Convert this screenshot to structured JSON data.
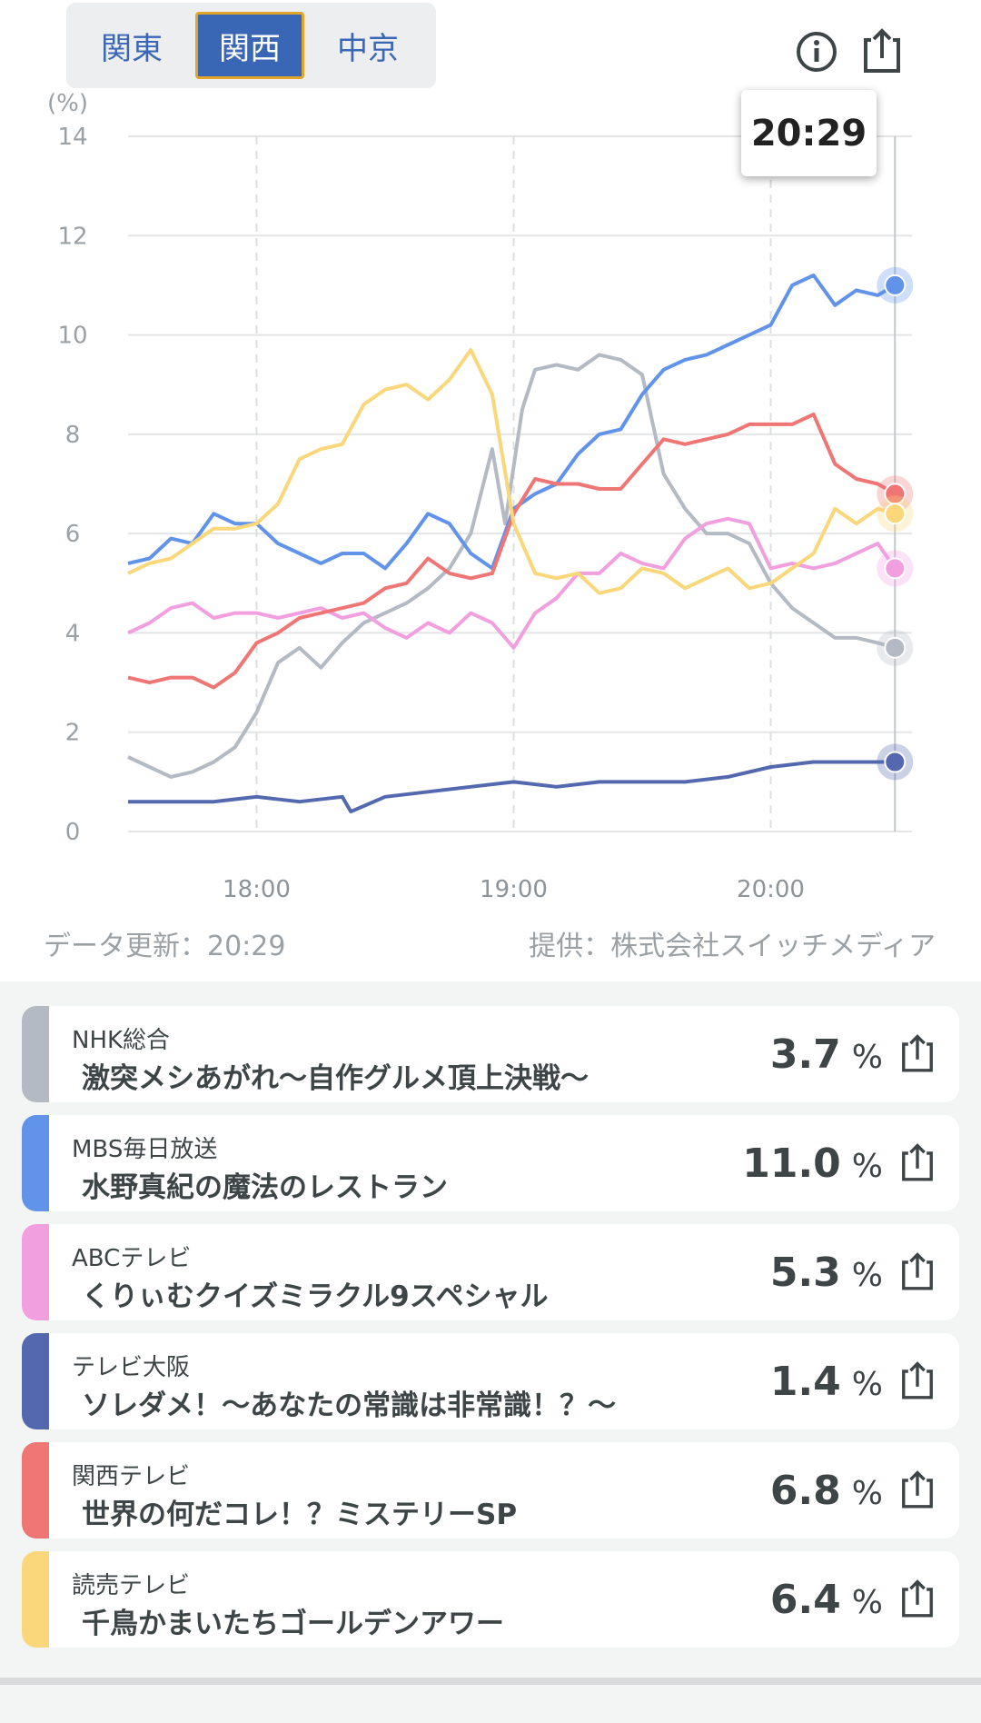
{
  "region_tabs": [
    {
      "label": "関東",
      "active": false
    },
    {
      "label": "関西",
      "active": true
    },
    {
      "label": "中京",
      "active": false
    }
  ],
  "header": {
    "info_icon": "info-icon",
    "share_icon": "share-icon"
  },
  "tooltip": {
    "time": "20:29"
  },
  "footer": {
    "updated": "データ更新：20:29",
    "provider": "提供：株式会社スイッチメディア"
  },
  "chart_data": {
    "type": "line",
    "ylabel": "(%)",
    "ylim": [
      0,
      14
    ],
    "yticks": [
      "0",
      "2",
      "4",
      "6",
      "8",
      "10",
      "12",
      "14"
    ],
    "xlim": [
      "17:30",
      "20:29"
    ],
    "xticks": [
      "18:00",
      "19:00",
      "20:00"
    ],
    "cursor": "20:29",
    "grid": true,
    "series": [
      {
        "name": "NHK総合",
        "color": "#b4bac3",
        "points": [
          [
            "17:30",
            1.5
          ],
          [
            "17:35",
            1.3
          ],
          [
            "17:40",
            1.1
          ],
          [
            "17:45",
            1.2
          ],
          [
            "17:50",
            1.4
          ],
          [
            "17:55",
            1.7
          ],
          [
            "18:00",
            2.4
          ],
          [
            "18:05",
            3.4
          ],
          [
            "18:10",
            3.7
          ],
          [
            "18:15",
            3.3
          ],
          [
            "18:20",
            3.8
          ],
          [
            "18:25",
            4.2
          ],
          [
            "18:30",
            4.4
          ],
          [
            "18:35",
            4.6
          ],
          [
            "18:40",
            4.9
          ],
          [
            "18:45",
            5.3
          ],
          [
            "18:50",
            6.0
          ],
          [
            "18:55",
            7.7
          ],
          [
            "18:58",
            6.2
          ],
          [
            "19:02",
            8.5
          ],
          [
            "19:05",
            9.3
          ],
          [
            "19:10",
            9.4
          ],
          [
            "19:15",
            9.3
          ],
          [
            "19:20",
            9.6
          ],
          [
            "19:25",
            9.5
          ],
          [
            "19:30",
            9.2
          ],
          [
            "19:35",
            7.2
          ],
          [
            "19:40",
            6.5
          ],
          [
            "19:45",
            6.0
          ],
          [
            "19:50",
            6.0
          ],
          [
            "19:55",
            5.8
          ],
          [
            "20:00",
            5.0
          ],
          [
            "20:05",
            4.5
          ],
          [
            "20:10",
            4.2
          ],
          [
            "20:15",
            3.9
          ],
          [
            "20:20",
            3.9
          ],
          [
            "20:25",
            3.8
          ],
          [
            "20:29",
            3.7
          ]
        ]
      },
      {
        "name": "MBS毎日放送",
        "color": "#6193ea",
        "points": [
          [
            "17:30",
            5.4
          ],
          [
            "17:35",
            5.5
          ],
          [
            "17:40",
            5.9
          ],
          [
            "17:45",
            5.8
          ],
          [
            "17:50",
            6.4
          ],
          [
            "17:55",
            6.2
          ],
          [
            "18:00",
            6.2
          ],
          [
            "18:05",
            5.8
          ],
          [
            "18:10",
            5.6
          ],
          [
            "18:15",
            5.4
          ],
          [
            "18:20",
            5.6
          ],
          [
            "18:25",
            5.6
          ],
          [
            "18:30",
            5.3
          ],
          [
            "18:35",
            5.8
          ],
          [
            "18:40",
            6.4
          ],
          [
            "18:45",
            6.2
          ],
          [
            "18:50",
            5.6
          ],
          [
            "18:55",
            5.3
          ],
          [
            "19:00",
            6.5
          ],
          [
            "19:05",
            6.8
          ],
          [
            "19:10",
            7.0
          ],
          [
            "19:15",
            7.6
          ],
          [
            "19:20",
            8.0
          ],
          [
            "19:25",
            8.1
          ],
          [
            "19:30",
            8.8
          ],
          [
            "19:35",
            9.3
          ],
          [
            "19:40",
            9.5
          ],
          [
            "19:45",
            9.6
          ],
          [
            "19:50",
            9.8
          ],
          [
            "19:55",
            10.0
          ],
          [
            "20:00",
            10.2
          ],
          [
            "20:05",
            11.0
          ],
          [
            "20:10",
            11.2
          ],
          [
            "20:15",
            10.6
          ],
          [
            "20:20",
            10.9
          ],
          [
            "20:25",
            10.8
          ],
          [
            "20:29",
            11.0
          ]
        ]
      },
      {
        "name": "ABCテレビ",
        "color": "#f29fe0",
        "points": [
          [
            "17:30",
            4.0
          ],
          [
            "17:35",
            4.2
          ],
          [
            "17:40",
            4.5
          ],
          [
            "17:45",
            4.6
          ],
          [
            "17:50",
            4.3
          ],
          [
            "17:55",
            4.4
          ],
          [
            "18:00",
            4.4
          ],
          [
            "18:05",
            4.3
          ],
          [
            "18:10",
            4.4
          ],
          [
            "18:15",
            4.5
          ],
          [
            "18:20",
            4.3
          ],
          [
            "18:25",
            4.4
          ],
          [
            "18:30",
            4.1
          ],
          [
            "18:35",
            3.9
          ],
          [
            "18:40",
            4.2
          ],
          [
            "18:45",
            4.0
          ],
          [
            "18:50",
            4.4
          ],
          [
            "18:55",
            4.2
          ],
          [
            "19:00",
            3.7
          ],
          [
            "19:05",
            4.4
          ],
          [
            "19:10",
            4.7
          ],
          [
            "19:15",
            5.2
          ],
          [
            "19:20",
            5.2
          ],
          [
            "19:25",
            5.6
          ],
          [
            "19:30",
            5.4
          ],
          [
            "19:35",
            5.3
          ],
          [
            "19:40",
            5.9
          ],
          [
            "19:45",
            6.2
          ],
          [
            "19:50",
            6.3
          ],
          [
            "19:55",
            6.2
          ],
          [
            "20:00",
            5.3
          ],
          [
            "20:05",
            5.4
          ],
          [
            "20:10",
            5.3
          ],
          [
            "20:15",
            5.4
          ],
          [
            "20:20",
            5.6
          ],
          [
            "20:25",
            5.8
          ],
          [
            "20:29",
            5.3
          ]
        ]
      },
      {
        "name": "テレビ大阪",
        "color": "#5468b0",
        "points": [
          [
            "17:30",
            0.6
          ],
          [
            "17:40",
            0.6
          ],
          [
            "17:50",
            0.6
          ],
          [
            "18:00",
            0.7
          ],
          [
            "18:10",
            0.6
          ],
          [
            "18:20",
            0.7
          ],
          [
            "18:22",
            0.4
          ],
          [
            "18:30",
            0.7
          ],
          [
            "18:40",
            0.8
          ],
          [
            "18:50",
            0.9
          ],
          [
            "19:00",
            1.0
          ],
          [
            "19:10",
            0.9
          ],
          [
            "19:20",
            1.0
          ],
          [
            "19:30",
            1.0
          ],
          [
            "19:40",
            1.0
          ],
          [
            "19:50",
            1.1
          ],
          [
            "20:00",
            1.3
          ],
          [
            "20:10",
            1.4
          ],
          [
            "20:20",
            1.4
          ],
          [
            "20:29",
            1.4
          ]
        ]
      },
      {
        "name": "関西テレビ",
        "color": "#f07575",
        "points": [
          [
            "17:30",
            3.1
          ],
          [
            "17:35",
            3.0
          ],
          [
            "17:40",
            3.1
          ],
          [
            "17:45",
            3.1
          ],
          [
            "17:50",
            2.9
          ],
          [
            "17:55",
            3.2
          ],
          [
            "18:00",
            3.8
          ],
          [
            "18:05",
            4.0
          ],
          [
            "18:10",
            4.3
          ],
          [
            "18:15",
            4.4
          ],
          [
            "18:20",
            4.5
          ],
          [
            "18:25",
            4.6
          ],
          [
            "18:30",
            4.9
          ],
          [
            "18:35",
            5.0
          ],
          [
            "18:40",
            5.5
          ],
          [
            "18:45",
            5.2
          ],
          [
            "18:50",
            5.1
          ],
          [
            "18:55",
            5.2
          ],
          [
            "19:00",
            6.4
          ],
          [
            "19:05",
            7.1
          ],
          [
            "19:10",
            7.0
          ],
          [
            "19:15",
            7.0
          ],
          [
            "19:20",
            6.9
          ],
          [
            "19:25",
            6.9
          ],
          [
            "19:30",
            7.4
          ],
          [
            "19:35",
            7.9
          ],
          [
            "19:40",
            7.8
          ],
          [
            "19:45",
            7.9
          ],
          [
            "19:50",
            8.0
          ],
          [
            "19:55",
            8.2
          ],
          [
            "20:00",
            8.2
          ],
          [
            "20:05",
            8.2
          ],
          [
            "20:10",
            8.4
          ],
          [
            "20:15",
            7.4
          ],
          [
            "20:20",
            7.1
          ],
          [
            "20:25",
            7.0
          ],
          [
            "20:29",
            6.8
          ]
        ]
      },
      {
        "name": "読売テレビ",
        "color": "#f9d77a",
        "points": [
          [
            "17:30",
            5.2
          ],
          [
            "17:35",
            5.4
          ],
          [
            "17:40",
            5.5
          ],
          [
            "17:45",
            5.8
          ],
          [
            "17:50",
            6.1
          ],
          [
            "17:55",
            6.1
          ],
          [
            "18:00",
            6.2
          ],
          [
            "18:05",
            6.6
          ],
          [
            "18:10",
            7.5
          ],
          [
            "18:15",
            7.7
          ],
          [
            "18:20",
            7.8
          ],
          [
            "18:25",
            8.6
          ],
          [
            "18:30",
            8.9
          ],
          [
            "18:35",
            9.0
          ],
          [
            "18:40",
            8.7
          ],
          [
            "18:45",
            9.1
          ],
          [
            "18:50",
            9.7
          ],
          [
            "18:55",
            8.8
          ],
          [
            "19:00",
            6.2
          ],
          [
            "19:05",
            5.2
          ],
          [
            "19:10",
            5.1
          ],
          [
            "19:15",
            5.2
          ],
          [
            "19:20",
            4.8
          ],
          [
            "19:25",
            4.9
          ],
          [
            "19:30",
            5.3
          ],
          [
            "19:35",
            5.2
          ],
          [
            "19:40",
            4.9
          ],
          [
            "19:45",
            5.1
          ],
          [
            "19:50",
            5.3
          ],
          [
            "19:55",
            4.9
          ],
          [
            "20:00",
            5.0
          ],
          [
            "20:05",
            5.3
          ],
          [
            "20:10",
            5.6
          ],
          [
            "20:15",
            6.5
          ],
          [
            "20:20",
            6.2
          ],
          [
            "20:25",
            6.5
          ],
          [
            "20:29",
            6.4
          ]
        ]
      }
    ]
  },
  "channels": [
    {
      "channel": "NHK総合",
      "program": "激突メシあがれ〜自作グルメ頂上決戦〜",
      "rating": "3.7",
      "unit": "%",
      "color": "#b4bac3"
    },
    {
      "channel": "MBS毎日放送",
      "program": "水野真紀の魔法のレストラン",
      "rating": "11.0",
      "unit": "%",
      "color": "#6193ea"
    },
    {
      "channel": "ABCテレビ",
      "program": "くりぃむクイズミラクル9スペシャル",
      "rating": "5.3",
      "unit": "%",
      "color": "#f29fe0"
    },
    {
      "channel": "テレビ大阪",
      "program": "ソレダメ！〜あなたの常識は非常識！？〜",
      "rating": "1.4",
      "unit": "%",
      "color": "#5468b0"
    },
    {
      "channel": "関西テレビ",
      "program": "世界の何だコレ！？ミステリーSP",
      "rating": "6.8",
      "unit": "%",
      "color": "#f07575"
    },
    {
      "channel": "読売テレビ",
      "program": "千鳥かまいたちゴールデンアワー",
      "rating": "6.4",
      "unit": "%",
      "color": "#f9d77a"
    }
  ]
}
